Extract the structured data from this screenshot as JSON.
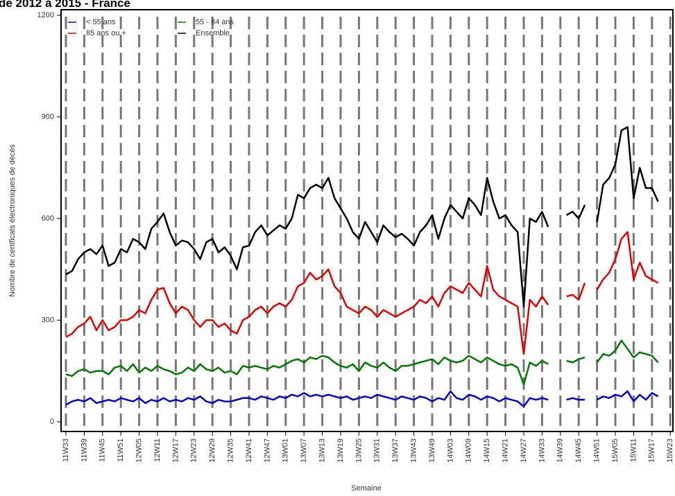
{
  "chart_data": {
    "type": "line",
    "title": "de 2012 à 2015 - France",
    "x_label": "Semaine",
    "y_label": "Nombre de certificats électroniques de décès",
    "ylim": [
      0,
      1200
    ],
    "yticks": [
      0,
      300,
      600,
      900,
      1200
    ],
    "x_grid": true,
    "legend": "upper left",
    "categories": [
      "11W33",
      null,
      null,
      "11W39",
      null,
      null,
      "11W45",
      null,
      null,
      "11W51",
      null,
      null,
      "12W05",
      null,
      null,
      "12W11",
      null,
      null,
      "12W17",
      null,
      null,
      "12W23",
      null,
      null,
      "12W29",
      null,
      null,
      "12W35",
      null,
      null,
      "12W41",
      null,
      null,
      "12W47",
      null,
      null,
      "13W01",
      null,
      null,
      "13W07",
      null,
      null,
      "13W13",
      null,
      null,
      "13W19",
      null,
      null,
      "13W25",
      null,
      null,
      "13W31",
      null,
      null,
      "13W37",
      null,
      null,
      "13W43",
      null,
      null,
      "13W49",
      null,
      null,
      "14W03",
      null,
      null,
      "14W09",
      null,
      null,
      "14W15",
      null,
      null,
      "14W21",
      null,
      null,
      "14W27",
      null,
      null,
      "14W33",
      null,
      null,
      "14W39",
      null,
      null,
      "14W45",
      null,
      null,
      "14W51",
      null,
      null,
      "15W05",
      null,
      null,
      "15W11",
      null,
      null,
      "15W17",
      null,
      null,
      "15W23"
    ],
    "series": [
      {
        "name": "< 55 ans",
        "color": "#0000cc",
        "values": [
          50,
          60,
          65,
          60,
          70,
          55,
          60,
          65,
          60,
          70,
          65,
          60,
          70,
          55,
          65,
          60,
          70,
          60,
          65,
          60,
          70,
          65,
          75,
          60,
          55,
          65,
          60,
          60,
          65,
          70,
          70,
          65,
          75,
          70,
          65,
          75,
          70,
          80,
          75,
          85,
          75,
          80,
          75,
          80,
          75,
          70,
          75,
          65,
          70,
          75,
          70,
          80,
          75,
          70,
          65,
          75,
          70,
          65,
          75,
          70,
          60,
          70,
          65,
          90,
          70,
          65,
          80,
          75,
          65,
          75,
          70,
          60,
          70,
          65,
          60,
          45,
          70,
          65,
          70,
          65,
          null,
          null,
          65,
          70,
          65,
          65,
          null,
          65,
          75,
          70,
          80,
          75,
          90,
          60,
          80,
          65,
          85,
          75,
          null,
          null
        ]
      },
      {
        "name": "55 - 84 ans",
        "color": "#007700",
        "values": [
          140,
          135,
          150,
          155,
          145,
          150,
          150,
          140,
          160,
          165,
          150,
          170,
          145,
          160,
          150,
          165,
          155,
          150,
          140,
          145,
          160,
          150,
          170,
          155,
          150,
          160,
          145,
          150,
          140,
          165,
          160,
          165,
          160,
          155,
          165,
          160,
          170,
          180,
          185,
          175,
          190,
          185,
          195,
          190,
          175,
          165,
          160,
          170,
          150,
          175,
          165,
          160,
          175,
          160,
          150,
          165,
          165,
          170,
          175,
          180,
          185,
          170,
          190,
          180,
          175,
          180,
          195,
          185,
          175,
          190,
          180,
          170,
          165,
          170,
          160,
          110,
          175,
          165,
          180,
          170,
          null,
          null,
          180,
          175,
          185,
          190,
          null,
          175,
          200,
          195,
          210,
          240,
          215,
          190,
          205,
          200,
          195,
          175,
          null,
          null
        ]
      },
      {
        "name": "85 ans ou +",
        "color": "#dd0000",
        "values": [
          250,
          260,
          280,
          290,
          310,
          270,
          300,
          270,
          280,
          300,
          300,
          310,
          330,
          320,
          360,
          390,
          395,
          350,
          320,
          340,
          330,
          300,
          280,
          300,
          300,
          280,
          290,
          270,
          260,
          300,
          310,
          330,
          340,
          320,
          340,
          350,
          340,
          360,
          400,
          410,
          440,
          420,
          430,
          450,
          400,
          380,
          340,
          330,
          320,
          340,
          330,
          310,
          330,
          320,
          310,
          320,
          330,
          340,
          360,
          350,
          370,
          340,
          380,
          400,
          390,
          380,
          410,
          390,
          370,
          460,
          390,
          370,
          360,
          350,
          340,
          200,
          360,
          340,
          370,
          345,
          null,
          null,
          370,
          375,
          360,
          410,
          null,
          390,
          420,
          440,
          480,
          540,
          560,
          420,
          470,
          430,
          420,
          410,
          null,
          null
        ]
      },
      {
        "name": "Ensemble",
        "color": "#000000",
        "values": [
          435,
          445,
          480,
          500,
          510,
          495,
          520,
          460,
          470,
          510,
          500,
          540,
          530,
          510,
          570,
          590,
          615,
          560,
          520,
          535,
          530,
          510,
          480,
          530,
          540,
          500,
          515,
          490,
          450,
          515,
          520,
          560,
          580,
          550,
          565,
          580,
          570,
          600,
          670,
          660,
          690,
          700,
          690,
          720,
          660,
          630,
          600,
          560,
          540,
          590,
          560,
          530,
          580,
          560,
          545,
          555,
          540,
          520,
          560,
          580,
          610,
          540,
          600,
          640,
          620,
          600,
          660,
          640,
          610,
          720,
          650,
          600,
          610,
          580,
          560,
          340,
          600,
          590,
          620,
          575,
          null,
          null,
          610,
          620,
          600,
          640,
          null,
          590,
          700,
          720,
          760,
          860,
          870,
          660,
          750,
          690,
          690,
          650,
          null,
          null
        ]
      }
    ]
  }
}
